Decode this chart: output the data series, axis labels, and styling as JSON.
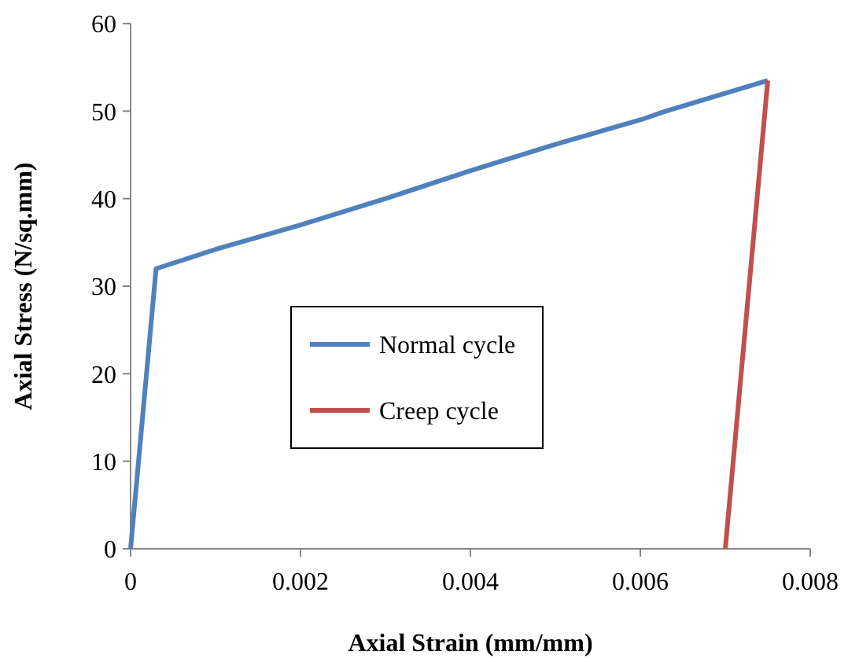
{
  "chart_data": {
    "type": "line",
    "xlabel": "Axial Strain (mm/mm)",
    "ylabel": "Axial Stress (N/sq.mm)",
    "xlim": [
      0,
      0.008
    ],
    "xticks": [
      0,
      0.002,
      0.004,
      0.006,
      0.008
    ],
    "ylim": [
      0,
      60
    ],
    "yticks": [
      0,
      10,
      20,
      30,
      40,
      50,
      60
    ],
    "grid": false,
    "legend": "center",
    "marker": "none",
    "line_style": "solid",
    "series": [
      {
        "name": "Normal cycle",
        "color": "#4f81bd",
        "x": [
          0,
          0.0003,
          0.001,
          0.002,
          0.003,
          0.004,
          0.005,
          0.006,
          0.0063,
          0.0075
        ],
        "values": [
          0,
          32,
          34.2,
          37,
          40,
          43.2,
          46.2,
          49,
          50,
          53.5
        ]
      },
      {
        "name": "Creep cycle",
        "color": "#c0504d",
        "x": [
          0.007,
          0.0075
        ],
        "values": [
          0,
          53.5
        ]
      }
    ]
  }
}
